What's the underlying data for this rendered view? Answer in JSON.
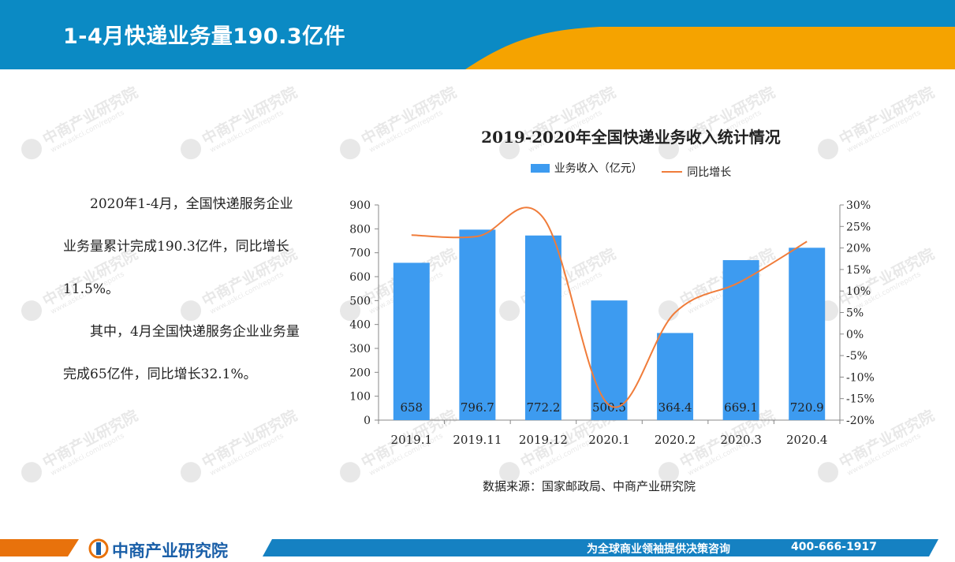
{
  "header": {
    "title": "1-4月快递业务量190.3亿件"
  },
  "watermark": {
    "text": "中商产业研究院",
    "sub": "www.askci.com/reports"
  },
  "body_text": {
    "paragraphs": [
      "2020年1-4月，全国快递服务企业业务量累计完成190.3亿件，同比增长11.5%。",
      "其中，4月全国快递服务企业业务量完成65亿件，同比增长32.1%。"
    ]
  },
  "chart_data": {
    "type": "bar",
    "title": "2019-2020年全国快递业务收入统计情况",
    "categories": [
      "2019.1",
      "2019.11",
      "2019.12",
      "2020.1",
      "2020.2",
      "2020.3",
      "2020.4"
    ],
    "series": [
      {
        "name": "业务收入（亿元）",
        "type": "bar",
        "axis": "left",
        "color": "#3d9bf0",
        "values": [
          658,
          796.7,
          772.2,
          500.5,
          364.4,
          669.1,
          720.9
        ],
        "labels": [
          "658",
          "796.7",
          "772.2",
          "500.5",
          "364.4",
          "669.1",
          "720.9"
        ]
      },
      {
        "name": "同比增长",
        "type": "line",
        "axis": "right",
        "color": "#f07c3a",
        "values": [
          23.0,
          22.7,
          27.0,
          -16.5,
          5.0,
          12.2,
          21.5
        ]
      }
    ],
    "y_left": {
      "min": 0,
      "max": 900,
      "step": 100,
      "ticks": [
        "0",
        "100",
        "200",
        "300",
        "400",
        "500",
        "600",
        "700",
        "800",
        "900"
      ]
    },
    "y_right": {
      "min": -20,
      "max": 30,
      "step": 5,
      "ticks": [
        "-20%",
        "-15%",
        "-10%",
        "-5%",
        "0%",
        "5%",
        "10%",
        "15%",
        "20%",
        "25%",
        "30%"
      ]
    },
    "legend_position": "top",
    "grid": false
  },
  "source": "数据来源：国家邮政局、中商产业研究院",
  "footer": {
    "brand": "中商产业研究院",
    "slogan": "为全球商业领袖提供决策咨询",
    "phone": "400-666-1917"
  },
  "colors": {
    "header_blue": "#0b8ac4",
    "accent_orange": "#f5a300",
    "footer_blue": "#1581c2",
    "footer_orange": "#e8720c"
  }
}
